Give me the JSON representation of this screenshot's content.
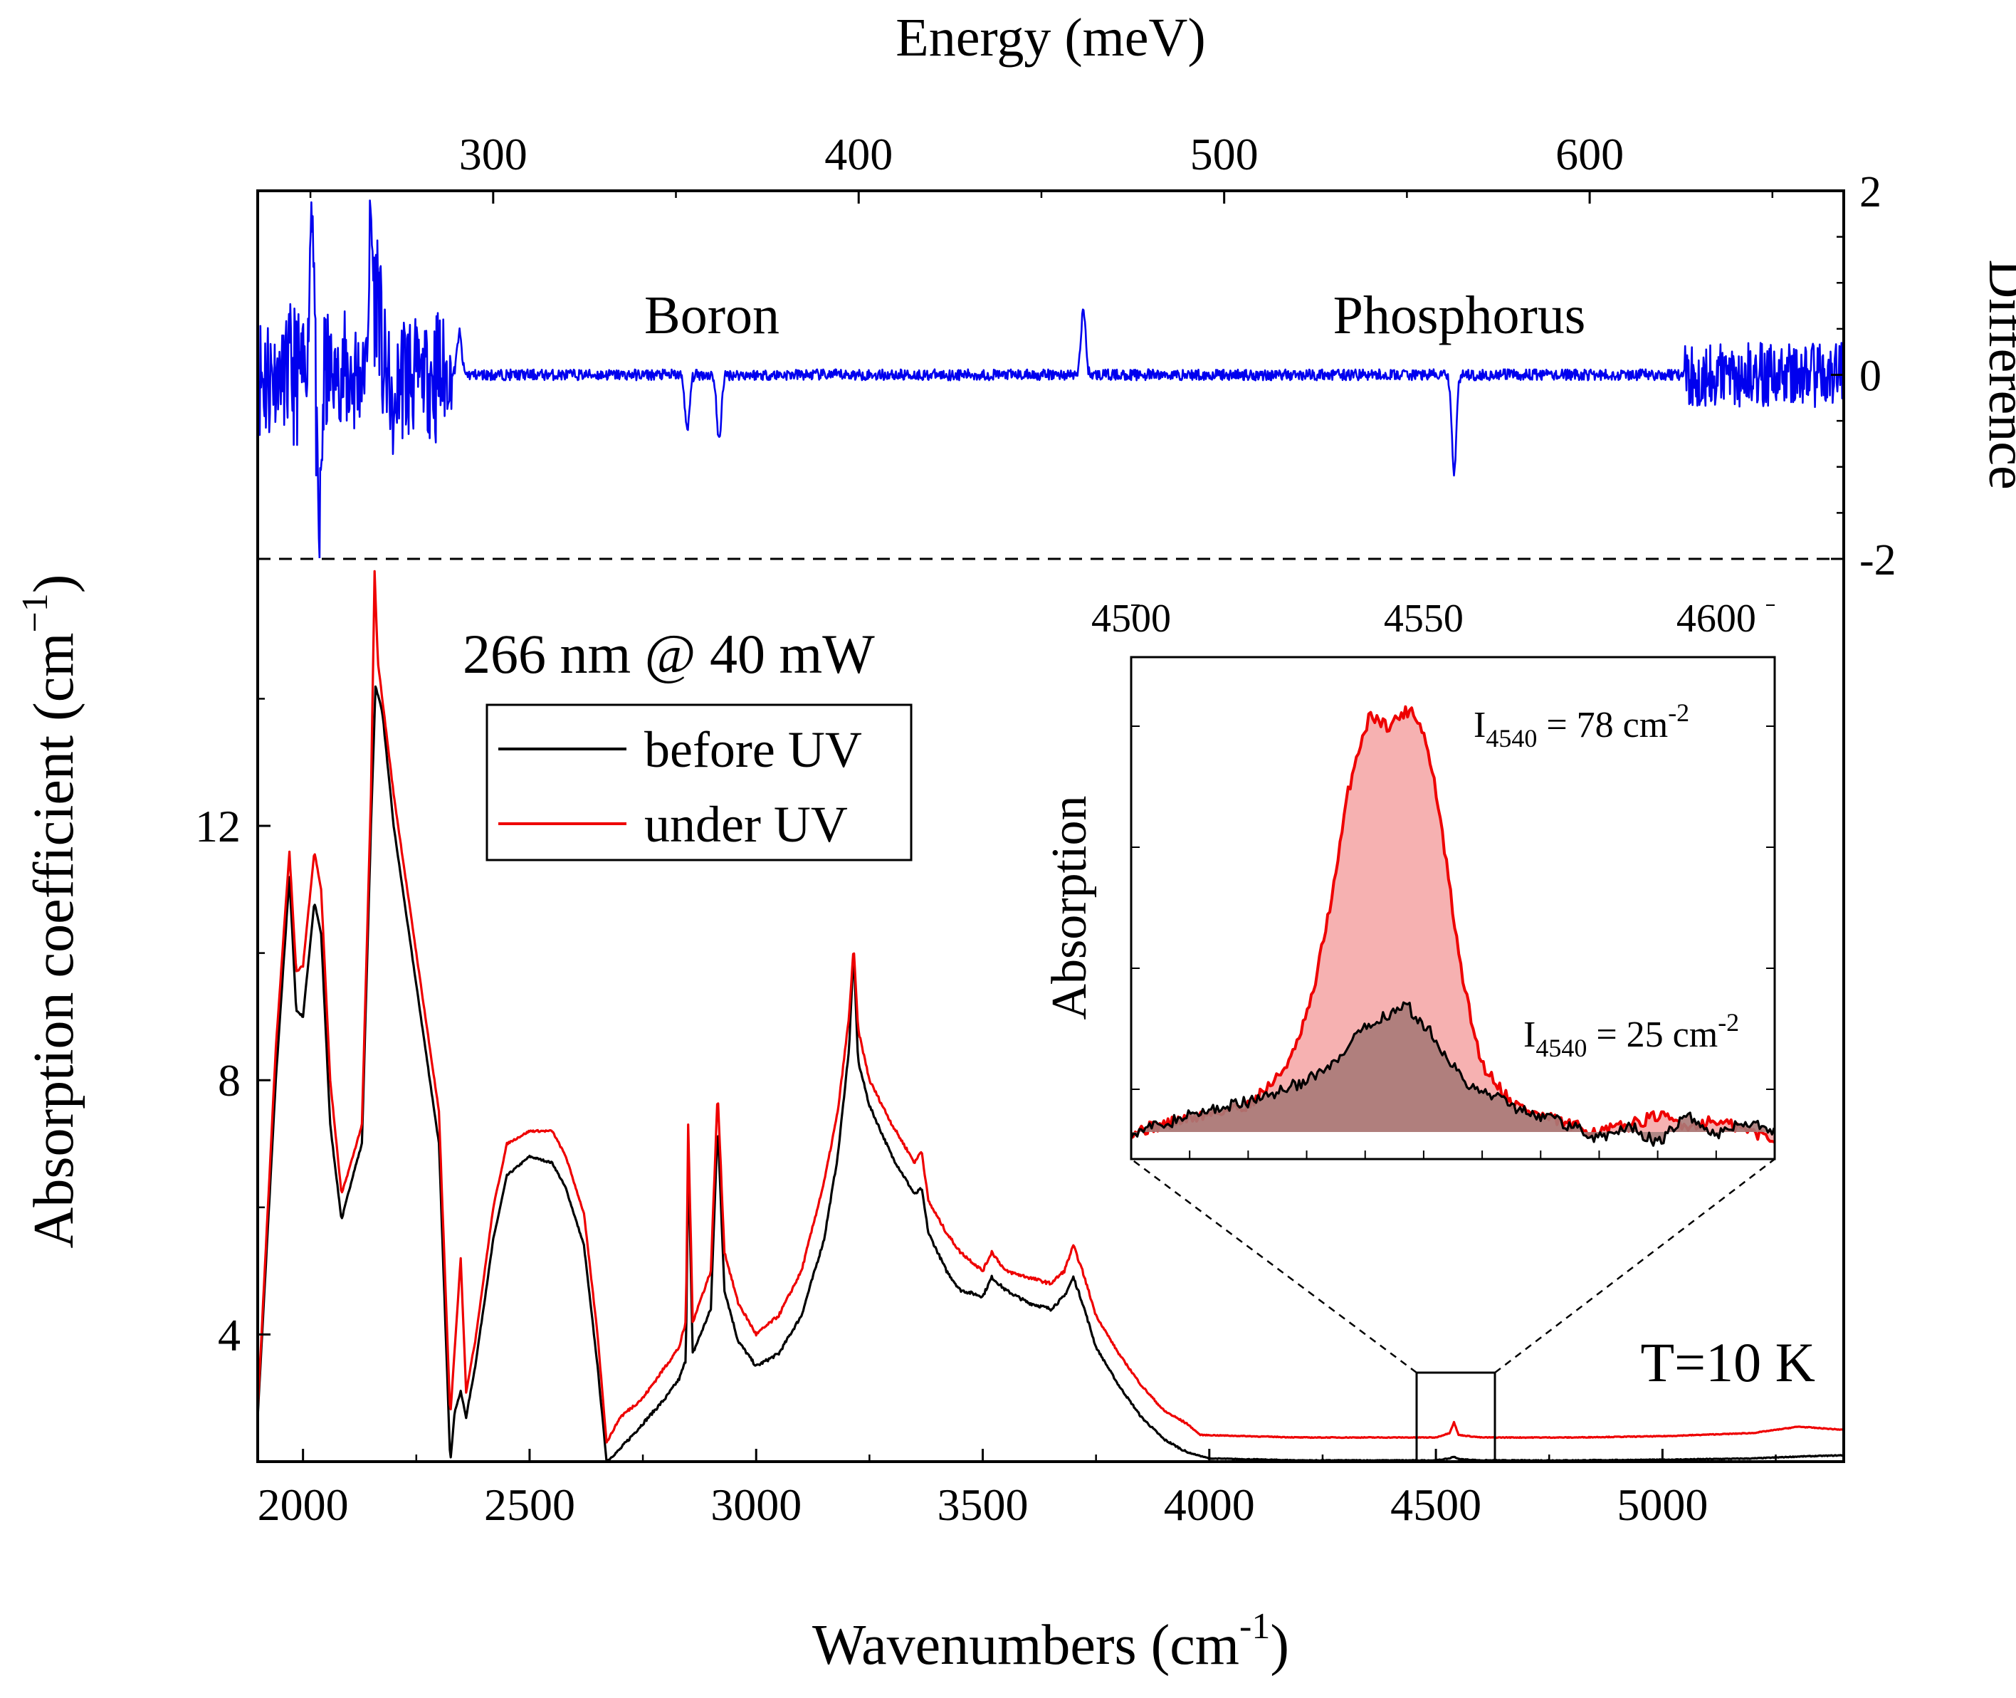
{
  "chart_data": [
    {
      "panel": "difference",
      "type": "line",
      "top_axis": {
        "label": "Energy (meV)",
        "ticks": [
          300,
          400,
          500,
          600
        ],
        "tick_labels": [
          "300",
          "400",
          "500",
          "600"
        ]
      },
      "ylabel": "Difference",
      "ylim": [
        -2,
        2
      ],
      "yticks": [
        2,
        0,
        -2
      ],
      "ytick_labels": [
        "2",
        "0",
        "-2"
      ],
      "annotations": [
        "Boron",
        "Phosphorus"
      ],
      "series": [
        {
          "name": "difference",
          "color": "#0000ee",
          "baseline": 0,
          "noisy_regions": [
            [
              1900,
              2330,
              0.8
            ],
            [
              5050,
              5400,
              0.35
            ],
            [
              2330,
              5050,
              0.06
            ]
          ],
          "features": [
            {
              "x": 2020,
              "y": 2.0
            },
            {
              "x": 2035,
              "y": -1.9
            },
            {
              "x": 2150,
              "y": 1.6
            },
            {
              "x": 2165,
              "y": 1.0
            },
            {
              "x": 2200,
              "y": -0.6
            },
            {
              "x": 2345,
              "y": 0.45
            },
            {
              "x": 2848,
              "y": -0.62
            },
            {
              "x": 2918,
              "y": -0.72
            },
            {
              "x": 3722,
              "y": 0.72
            },
            {
              "x": 4540,
              "y": -1.08
            }
          ]
        }
      ]
    },
    {
      "panel": "absorption",
      "type": "line",
      "xlabel": "Wavenumbers (cm",
      "xlabel_sup": "-1",
      "xlabel_close": ")",
      "ylabel": "Absorption coefficient (cm",
      "ylabel_sup": "−1",
      "ylabel_close": ")",
      "xlim": [
        1900,
        5400
      ],
      "ylim": [
        2,
        16.2
      ],
      "xticks": [
        2000,
        2500,
        3000,
        3500,
        4000,
        4500,
        5000
      ],
      "xtick_labels": [
        "2000",
        "2500",
        "3000",
        "3500",
        "4000",
        "4500",
        "5000"
      ],
      "yticks": [
        4,
        8,
        12
      ],
      "ytick_labels": [
        "4",
        "8",
        "12"
      ],
      "annotation": "266 nm @ 40 mW",
      "temperature": "T=10 K",
      "legend": [
        "before UV",
        "under UV"
      ],
      "series": [
        {
          "name": "before UV",
          "color": "#000000",
          "x": [
            1900,
            1940,
            1970,
            1985,
            2000,
            2025,
            2040,
            2060,
            2085,
            2110,
            2130,
            2150,
            2160,
            2175,
            2200,
            2250,
            2300,
            2325,
            2335,
            2348,
            2360,
            2380,
            2420,
            2450,
            2500,
            2550,
            2580,
            2620,
            2650,
            2670,
            2700,
            2750,
            2800,
            2830,
            2845,
            2850,
            2860,
            2900,
            2915,
            2930,
            2960,
            3000,
            3050,
            3100,
            3150,
            3180,
            3205,
            3215,
            3225,
            3250,
            3300,
            3350,
            3365,
            3380,
            3420,
            3450,
            3500,
            3520,
            3550,
            3600,
            3650,
            3680,
            3700,
            3720,
            3750,
            3800,
            3850,
            3900,
            3950,
            4000,
            4200,
            4500,
            4530,
            4540,
            4550,
            4600,
            4800,
            5000,
            5200,
            5300,
            5400
          ],
          "y": [
            2.7,
            8.0,
            11.2,
            9.1,
            9.0,
            10.8,
            10.3,
            7.3,
            5.8,
            6.5,
            7.0,
            12.0,
            14.2,
            13.8,
            12.0,
            9.5,
            7.0,
            2.0,
            2.8,
            3.1,
            2.7,
            3.5,
            5.5,
            6.5,
            6.8,
            6.7,
            6.3,
            5.4,
            3.5,
            2.0,
            2.2,
            2.6,
            3.0,
            3.3,
            3.6,
            6.8,
            3.7,
            4.4,
            7.3,
            4.7,
            3.9,
            3.5,
            3.7,
            4.3,
            5.5,
            6.8,
            8.5,
            10.0,
            8.3,
            7.6,
            6.8,
            6.2,
            6.3,
            5.6,
            5.0,
            4.7,
            4.6,
            4.9,
            4.7,
            4.5,
            4.4,
            4.6,
            4.9,
            4.5,
            3.8,
            3.2,
            2.7,
            2.35,
            2.15,
            2.05,
            2.02,
            2.02,
            2.05,
            2.08,
            2.04,
            2.02,
            2.02,
            2.03,
            2.05,
            2.08,
            2.1
          ]
        },
        {
          "name": "under UV",
          "color": "#ee0000",
          "x": [
            1900,
            1940,
            1970,
            1985,
            2000,
            2025,
            2040,
            2060,
            2085,
            2110,
            2130,
            2150,
            2158,
            2165,
            2175,
            2200,
            2250,
            2300,
            2325,
            2335,
            2348,
            2360,
            2380,
            2420,
            2450,
            2500,
            2550,
            2580,
            2620,
            2650,
            2670,
            2700,
            2750,
            2800,
            2830,
            2845,
            2850,
            2860,
            2900,
            2915,
            2930,
            2960,
            3000,
            3050,
            3100,
            3150,
            3180,
            3205,
            3215,
            3225,
            3250,
            3300,
            3350,
            3365,
            3380,
            3420,
            3450,
            3500,
            3520,
            3550,
            3600,
            3650,
            3680,
            3700,
            3720,
            3750,
            3800,
            3850,
            3900,
            3950,
            3980,
            4200,
            4500,
            4530,
            4540,
            4550,
            4600,
            4800,
            5000,
            5200,
            5300,
            5400
          ],
          "y": [
            2.8,
            8.5,
            11.6,
            9.7,
            9.8,
            11.6,
            11.0,
            8.0,
            6.2,
            6.8,
            7.3,
            12.5,
            16.0,
            14.6,
            14.0,
            12.5,
            10.0,
            7.5,
            2.7,
            3.8,
            5.2,
            3.1,
            3.9,
            6.0,
            7.0,
            7.2,
            7.2,
            6.8,
            5.9,
            4.0,
            2.3,
            2.7,
            3.0,
            3.5,
            3.8,
            4.2,
            7.3,
            4.2,
            5.0,
            7.8,
            5.3,
            4.5,
            4.0,
            4.3,
            5.0,
            6.4,
            7.5,
            9.0,
            10.1,
            8.8,
            8.0,
            7.3,
            6.7,
            6.9,
            6.1,
            5.6,
            5.3,
            5.0,
            5.3,
            5.0,
            4.9,
            4.8,
            5.0,
            5.4,
            5.0,
            4.3,
            3.7,
            3.2,
            2.8,
            2.6,
            2.42,
            2.38,
            2.38,
            2.45,
            2.62,
            2.42,
            2.38,
            2.38,
            2.4,
            2.45,
            2.55,
            2.5
          ]
        }
      ]
    },
    {
      "panel": "inset",
      "type": "area",
      "xlabel": "",
      "ylabel": "Absorption",
      "xlim": [
        4500,
        4610
      ],
      "xticks": [
        4500,
        4550,
        4600
      ],
      "xtick_labels": [
        "4500",
        "4550",
        "4600"
      ],
      "labels": [
        {
          "pre": "I",
          "sub": "4540",
          "post": " = 78 cm",
          "sup": "-2"
        },
        {
          "pre": "I",
          "sub": "4540",
          "post": " = 25 cm",
          "sup": "-2"
        }
      ],
      "series": [
        {
          "name": "under UV",
          "color": "#ee0000",
          "fill": "#f4a3a3",
          "x": [
            4500,
            4505,
            4510,
            4515,
            4520,
            4525,
            4528,
            4531,
            4533,
            4535,
            4537,
            4539,
            4541,
            4542,
            4544,
            4546,
            4548,
            4550,
            4552,
            4554,
            4556,
            4558,
            4560,
            4565,
            4570,
            4575,
            4580,
            4585,
            4590,
            4595,
            4600,
            4610
          ],
          "y": [
            0.0,
            0.05,
            0.1,
            0.15,
            0.2,
            0.4,
            0.6,
            1.0,
            1.45,
            1.9,
            2.5,
            2.85,
            3.1,
            3.05,
            3.0,
            3.08,
            3.13,
            2.95,
            2.55,
            1.95,
            1.3,
            0.85,
            0.5,
            0.22,
            0.12,
            0.05,
            0.0,
            0.05,
            0.12,
            0.05,
            0.08,
            -0.05
          ]
        },
        {
          "name": "before UV",
          "color": "#000000",
          "fill": "#a87a78",
          "x": [
            4500,
            4505,
            4510,
            4515,
            4520,
            4525,
            4530,
            4535,
            4538,
            4541,
            4543,
            4545,
            4547,
            4549,
            4551,
            4553,
            4555,
            4557,
            4560,
            4563,
            4566,
            4570,
            4575,
            4580,
            4585,
            4590,
            4595,
            4600,
            4605,
            4610
          ],
          "y": [
            0.0,
            0.05,
            0.12,
            0.18,
            0.22,
            0.3,
            0.38,
            0.5,
            0.68,
            0.8,
            0.85,
            0.9,
            0.95,
            0.82,
            0.76,
            0.62,
            0.5,
            0.35,
            0.3,
            0.25,
            0.18,
            0.12,
            0.05,
            -0.05,
            0.05,
            -0.08,
            0.12,
            -0.02,
            0.08,
            0.0
          ]
        }
      ]
    }
  ]
}
